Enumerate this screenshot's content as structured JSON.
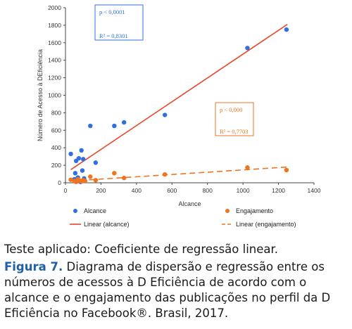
{
  "chart_data": {
    "type": "scatter",
    "ylabel": "Número de Acesso à DEficiência",
    "xlabel": "Alcance",
    "xlim": [
      0,
      1400
    ],
    "ylim": [
      0,
      2000
    ],
    "x_ticks": [
      "0",
      "200",
      "400",
      "600",
      "800",
      "1000",
      "1200",
      "1400"
    ],
    "y_ticks": [
      "0",
      "200",
      "400",
      "600",
      "800",
      "1000",
      "1200",
      "1400",
      "1600",
      "1800",
      "2000"
    ],
    "grid": false,
    "legend_position": "bottom",
    "series": [
      {
        "name": "Alcance",
        "color": "#2f6fde",
        "marker": "circle",
        "points": [
          {
            "x": 30,
            "y": 330
          },
          {
            "x": 50,
            "y": 40
          },
          {
            "x": 55,
            "y": 110
          },
          {
            "x": 60,
            "y": 250
          },
          {
            "x": 65,
            "y": 20
          },
          {
            "x": 70,
            "y": 60
          },
          {
            "x": 75,
            "y": 280
          },
          {
            "x": 85,
            "y": 10
          },
          {
            "x": 90,
            "y": 370
          },
          {
            "x": 95,
            "y": 140
          },
          {
            "x": 100,
            "y": 270
          },
          {
            "x": 105,
            "y": 50
          },
          {
            "x": 110,
            "y": 20
          },
          {
            "x": 140,
            "y": 650
          },
          {
            "x": 170,
            "y": 230
          },
          {
            "x": 275,
            "y": 650
          },
          {
            "x": 330,
            "y": 690
          },
          {
            "x": 560,
            "y": 775
          },
          {
            "x": 1025,
            "y": 1540
          },
          {
            "x": 1245,
            "y": 1750
          }
        ]
      },
      {
        "name": "Engajamento",
        "color": "#ee7420",
        "marker": "circle",
        "points": [
          {
            "x": 30,
            "y": 35
          },
          {
            "x": 50,
            "y": 20
          },
          {
            "x": 60,
            "y": 10
          },
          {
            "x": 70,
            "y": 40
          },
          {
            "x": 80,
            "y": 25
          },
          {
            "x": 90,
            "y": 15
          },
          {
            "x": 100,
            "y": 30
          },
          {
            "x": 110,
            "y": 20
          },
          {
            "x": 140,
            "y": 70
          },
          {
            "x": 170,
            "y": 30
          },
          {
            "x": 275,
            "y": 110
          },
          {
            "x": 330,
            "y": 55
          },
          {
            "x": 560,
            "y": 95
          },
          {
            "x": 1025,
            "y": 175
          },
          {
            "x": 1245,
            "y": 145
          }
        ]
      }
    ],
    "trendlines": [
      {
        "name": "Linear (alcance)",
        "color": "#e8462a",
        "dash": "solid",
        "x": [
          30,
          1250
        ],
        "y": [
          150,
          1810
        ]
      },
      {
        "name": "Linear (engajamento)",
        "color": "#ee7420",
        "dash": "dashed",
        "x": [
          30,
          1250
        ],
        "y": [
          20,
          180
        ]
      }
    ],
    "annotations": [
      {
        "lines": [
          "p < 0,0001",
          "R² = 0,8301"
        ],
        "color": "#2f6fde",
        "anchor": "top-left"
      },
      {
        "lines": [
          "p < 0,000",
          "R² = 0,7703"
        ],
        "color": "#ee7420",
        "anchor": "middle-right"
      }
    ]
  },
  "caption": {
    "test_line": "Teste aplicado: Coeficiente de regressão linear.",
    "figure_label": "Figura 7.",
    "figure_text": "Diagrama de dispersão e regressão entre os números de acessos à D Eficiência de acordo com o alcance e o engajamento das publicações no perfil da D Eficiência no Facebook®. Brasil, 2017."
  }
}
